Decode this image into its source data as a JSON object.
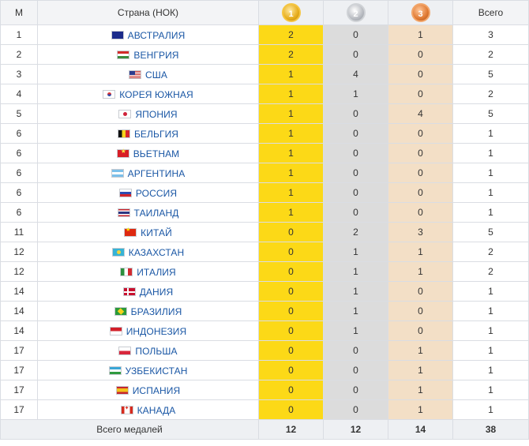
{
  "header": {
    "rank": "М",
    "country": "Страна (НОК)",
    "gold_digit": "1",
    "silver_digit": "2",
    "bronze_digit": "3",
    "total": "Всего"
  },
  "rows": [
    {
      "rank": "1",
      "flag": "au",
      "country": "АВСТРАЛИЯ",
      "gold": "2",
      "silver": "0",
      "bronze": "1",
      "total": "3"
    },
    {
      "rank": "2",
      "flag": "hu",
      "country": "ВЕНГРИЯ",
      "gold": "2",
      "silver": "0",
      "bronze": "0",
      "total": "2"
    },
    {
      "rank": "3",
      "flag": "us",
      "country": "США",
      "gold": "1",
      "silver": "4",
      "bronze": "0",
      "total": "5"
    },
    {
      "rank": "4",
      "flag": "kr",
      "country": "КОРЕЯ ЮЖНАЯ",
      "gold": "1",
      "silver": "1",
      "bronze": "0",
      "total": "2"
    },
    {
      "rank": "5",
      "flag": "jp",
      "country": "ЯПОНИЯ",
      "gold": "1",
      "silver": "0",
      "bronze": "4",
      "total": "5"
    },
    {
      "rank": "6",
      "flag": "be",
      "country": "БЕЛЬГИЯ",
      "gold": "1",
      "silver": "0",
      "bronze": "0",
      "total": "1"
    },
    {
      "rank": "6",
      "flag": "vn",
      "country": "ВЬЕТНАМ",
      "gold": "1",
      "silver": "0",
      "bronze": "0",
      "total": "1"
    },
    {
      "rank": "6",
      "flag": "ar",
      "country": "АРГЕНТИНА",
      "gold": "1",
      "silver": "0",
      "bronze": "0",
      "total": "1"
    },
    {
      "rank": "6",
      "flag": "ru",
      "country": "РОССИЯ",
      "gold": "1",
      "silver": "0",
      "bronze": "0",
      "total": "1"
    },
    {
      "rank": "6",
      "flag": "th",
      "country": "ТАИЛАНД",
      "gold": "1",
      "silver": "0",
      "bronze": "0",
      "total": "1"
    },
    {
      "rank": "11",
      "flag": "cn",
      "country": "КИТАЙ",
      "gold": "0",
      "silver": "2",
      "bronze": "3",
      "total": "5"
    },
    {
      "rank": "12",
      "flag": "kz",
      "country": "КАЗАХСТАН",
      "gold": "0",
      "silver": "1",
      "bronze": "1",
      "total": "2"
    },
    {
      "rank": "12",
      "flag": "it",
      "country": "ИТАЛИЯ",
      "gold": "0",
      "silver": "1",
      "bronze": "1",
      "total": "2"
    },
    {
      "rank": "14",
      "flag": "dk",
      "country": "ДАНИЯ",
      "gold": "0",
      "silver": "1",
      "bronze": "0",
      "total": "1"
    },
    {
      "rank": "14",
      "flag": "br",
      "country": "БРАЗИЛИЯ",
      "gold": "0",
      "silver": "1",
      "bronze": "0",
      "total": "1"
    },
    {
      "rank": "14",
      "flag": "id",
      "country": "ИНДОНЕЗИЯ",
      "gold": "0",
      "silver": "1",
      "bronze": "0",
      "total": "1"
    },
    {
      "rank": "17",
      "flag": "pl",
      "country": "ПОЛЬША",
      "gold": "0",
      "silver": "0",
      "bronze": "1",
      "total": "1"
    },
    {
      "rank": "17",
      "flag": "uz",
      "country": "УЗБЕКИСТАН",
      "gold": "0",
      "silver": "0",
      "bronze": "1",
      "total": "1"
    },
    {
      "rank": "17",
      "flag": "es",
      "country": "ИСПАНИЯ",
      "gold": "0",
      "silver": "0",
      "bronze": "1",
      "total": "1"
    },
    {
      "rank": "17",
      "flag": "ca",
      "country": "КАНАДА",
      "gold": "0",
      "silver": "0",
      "bronze": "1",
      "total": "1"
    }
  ],
  "footer": {
    "label": "Всего медалей",
    "gold": "12",
    "silver": "12",
    "bronze": "14",
    "total": "38"
  },
  "icons": {
    "gold": "gold-medal-icon",
    "silver": "silver-medal-icon",
    "bronze": "bronze-medal-icon"
  },
  "colors": {
    "gold_cell": "#fcd917",
    "silver_cell": "#dcdcdc",
    "bronze_cell": "#f3dfc6",
    "link": "#1a57a5",
    "header_bg": "#eef0f3"
  }
}
